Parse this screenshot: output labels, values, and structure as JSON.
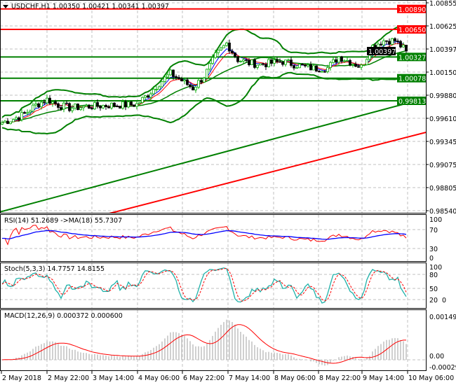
{
  "header": {
    "symbol_line": "USDCHF,H1  1.00350 1.00421 1.00341 1.00397",
    "menu_icon": "triangle-down-icon"
  },
  "colors": {
    "bull_candle": "#00aa00",
    "bear_candle": "#000000",
    "resistance": "#ff0000",
    "support": "#008000",
    "bollinger": "#008000",
    "ma_long": "#008000",
    "ma_slow": "#ff0000",
    "rsi": "#ff0000",
    "rsi_ma": "#0000ff",
    "stoch_main": "#20b2aa",
    "stoch_signal": "#ff0000",
    "macd_hist": "#c0c0c0",
    "macd_signal": "#ff0000"
  },
  "price_axis": {
    "ticks": [
      "1.00855",
      "1.00625",
      "1.00397",
      "1.00150",
      "0.99880",
      "0.99610",
      "0.99345",
      "0.99075",
      "0.98805",
      "0.98540"
    ],
    "levels": [
      {
        "label": "1.00890",
        "price": 1.0089,
        "type": "resistance"
      },
      {
        "label": "1.00650",
        "price": 1.0065,
        "type": "resistance"
      },
      {
        "label": "1.00327",
        "price": 1.00327,
        "type": "support"
      },
      {
        "label": "1.00078",
        "price": 1.00078,
        "type": "support"
      },
      {
        "label": "0.99813",
        "price": 0.99813,
        "type": "support"
      }
    ],
    "current_price_label": "1.00397"
  },
  "time_axis": {
    "labels": [
      "2 May 2018",
      "2 May 22:00",
      "3 May 14:00",
      "4 May 06:00",
      "6 May 22:00",
      "7 May 14:00",
      "8 May 06:00",
      "8 May 22:00",
      "9 May 14:00",
      "10 May 06:00"
    ]
  },
  "chart_data": [
    {
      "type": "candlestick",
      "title": "USDCHF,H1",
      "timeframe_hours": 1,
      "closes_every_4h": [
        0.99559,
        0.996,
        0.99657,
        0.99764,
        0.99829,
        0.99764,
        0.99731,
        0.99739,
        0.99747,
        0.99756,
        0.99764,
        0.99764,
        0.99772,
        0.99887,
        1.00018,
        1.00133,
        1.00051,
        0.99961,
        1.001,
        1.00338,
        1.00486,
        1.00297,
        1.00256,
        1.0024,
        1.00256,
        1.00273,
        1.0024,
        1.00207,
        1.0019,
        1.00199,
        1.0033,
        1.00273,
        1.00207,
        1.00453,
        1.00519,
        1.00519,
        1.00397
      ],
      "last_bar": {
        "open": 1.0035,
        "high": 1.00421,
        "low": 1.00341,
        "close": 1.00397
      },
      "ma_long": {
        "start": 0.9851,
        "end": 0.99784
      },
      "ma_slow": {
        "start": 0.98164,
        "end": 0.99386
      },
      "bollinger": {
        "period": 20,
        "deviation": 2
      },
      "ylim": [
        0.9854,
        1.00855
      ]
    },
    {
      "type": "line",
      "title": "RSI(14) 51.2689  ->MA(18) 55.7307",
      "rsi_period": 14,
      "rsi_value": 51.2689,
      "ma_period": 18,
      "ma_value": 55.7307,
      "levels": [
        "100",
        "70",
        "30",
        "0"
      ],
      "ylim": [
        0,
        100
      ]
    },
    {
      "type": "line",
      "title": "Stoch(5,3,3) 14.7757 14.8155",
      "main_value": 14.7757,
      "signal_value": 14.8155,
      "levels": [
        "100",
        "80",
        "50",
        "20",
        "0"
      ],
      "ylim": [
        0,
        100
      ]
    },
    {
      "type": "bar",
      "title": "MACD(12,26,9) 0.000372 0.000600",
      "macd_value": 0.000372,
      "signal_value": 0.0006,
      "levels": [
        "0.001492",
        "0.00",
        "-0.000298"
      ],
      "ylim": [
        -0.000298,
        0.001492
      ]
    }
  ]
}
